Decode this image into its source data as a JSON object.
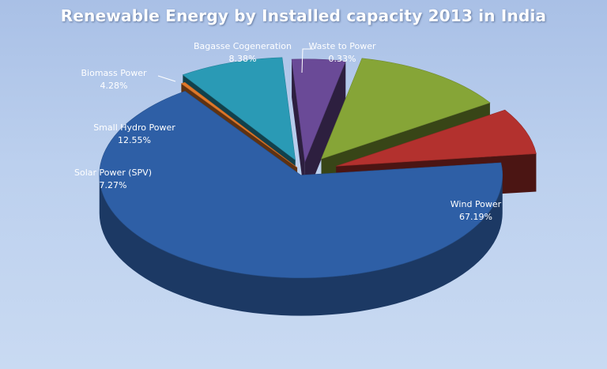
{
  "chart_data": {
    "type": "pie",
    "title": "Renewable Energy by Installed capacity 2013 in India",
    "slices": [
      {
        "name": "Wind Power",
        "value_label": "67.19%",
        "value": 67.19,
        "color": "#2e5fa6"
      },
      {
        "name": "Waste to Power",
        "value_label": "0.33%",
        "value": 0.33,
        "color": "#e0782a"
      },
      {
        "name": "Bagasse Cogeneration",
        "value_label": "8.38%",
        "value": 8.38,
        "color": "#2a9ab5"
      },
      {
        "name": "Biomass Power",
        "value_label": "4.28%",
        "value": 4.28,
        "color": "#6a4a97"
      },
      {
        "name": "Small Hydro Power",
        "value_label": "12.55%",
        "value": 12.55,
        "color": "#86a537"
      },
      {
        "name": "Solar Power (SPV)",
        "value_label": "7.27%",
        "value": 7.27,
        "color": "#b3312e"
      }
    ],
    "exploded": true,
    "style": "3d",
    "legend": "none"
  }
}
